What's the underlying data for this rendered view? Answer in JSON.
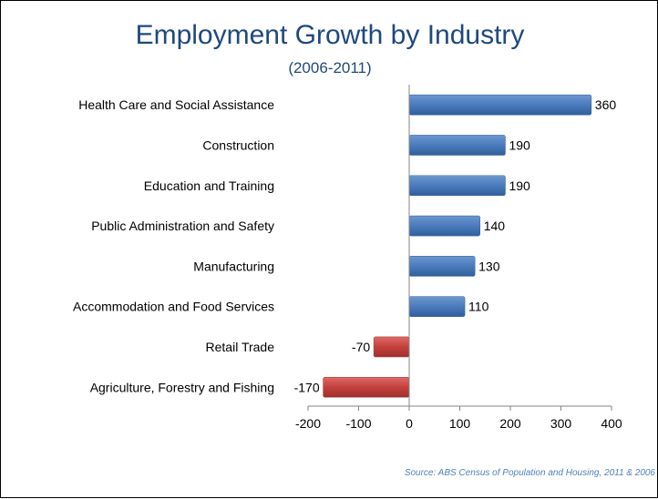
{
  "title": "Employment Growth by Industry",
  "subtitle": "(2006-2011)",
  "source": "Source: ABS Census of Population and Housing, 2011 & 2006",
  "colors": {
    "positive": "#4f81bd",
    "negative": "#c0504d",
    "title": "#1f497d"
  },
  "chart_data": {
    "type": "bar",
    "orientation": "horizontal",
    "title": "Employment Growth by Industry",
    "subtitle": "(2006-2011)",
    "categories": [
      "Health Care and Social Assistance",
      "Construction",
      "Education and Training",
      "Public Administration and Safety",
      "Manufacturing",
      "Accommodation and Food Services",
      "Retail Trade",
      "Agriculture, Forestry and Fishing"
    ],
    "values": [
      360,
      190,
      190,
      140,
      130,
      110,
      -70,
      -170
    ],
    "xlim": [
      -200,
      400
    ],
    "xticks": [
      -200,
      -100,
      0,
      100,
      200,
      300,
      400
    ],
    "xlabel": "",
    "ylabel": "",
    "grid": false,
    "data_labels": true
  }
}
